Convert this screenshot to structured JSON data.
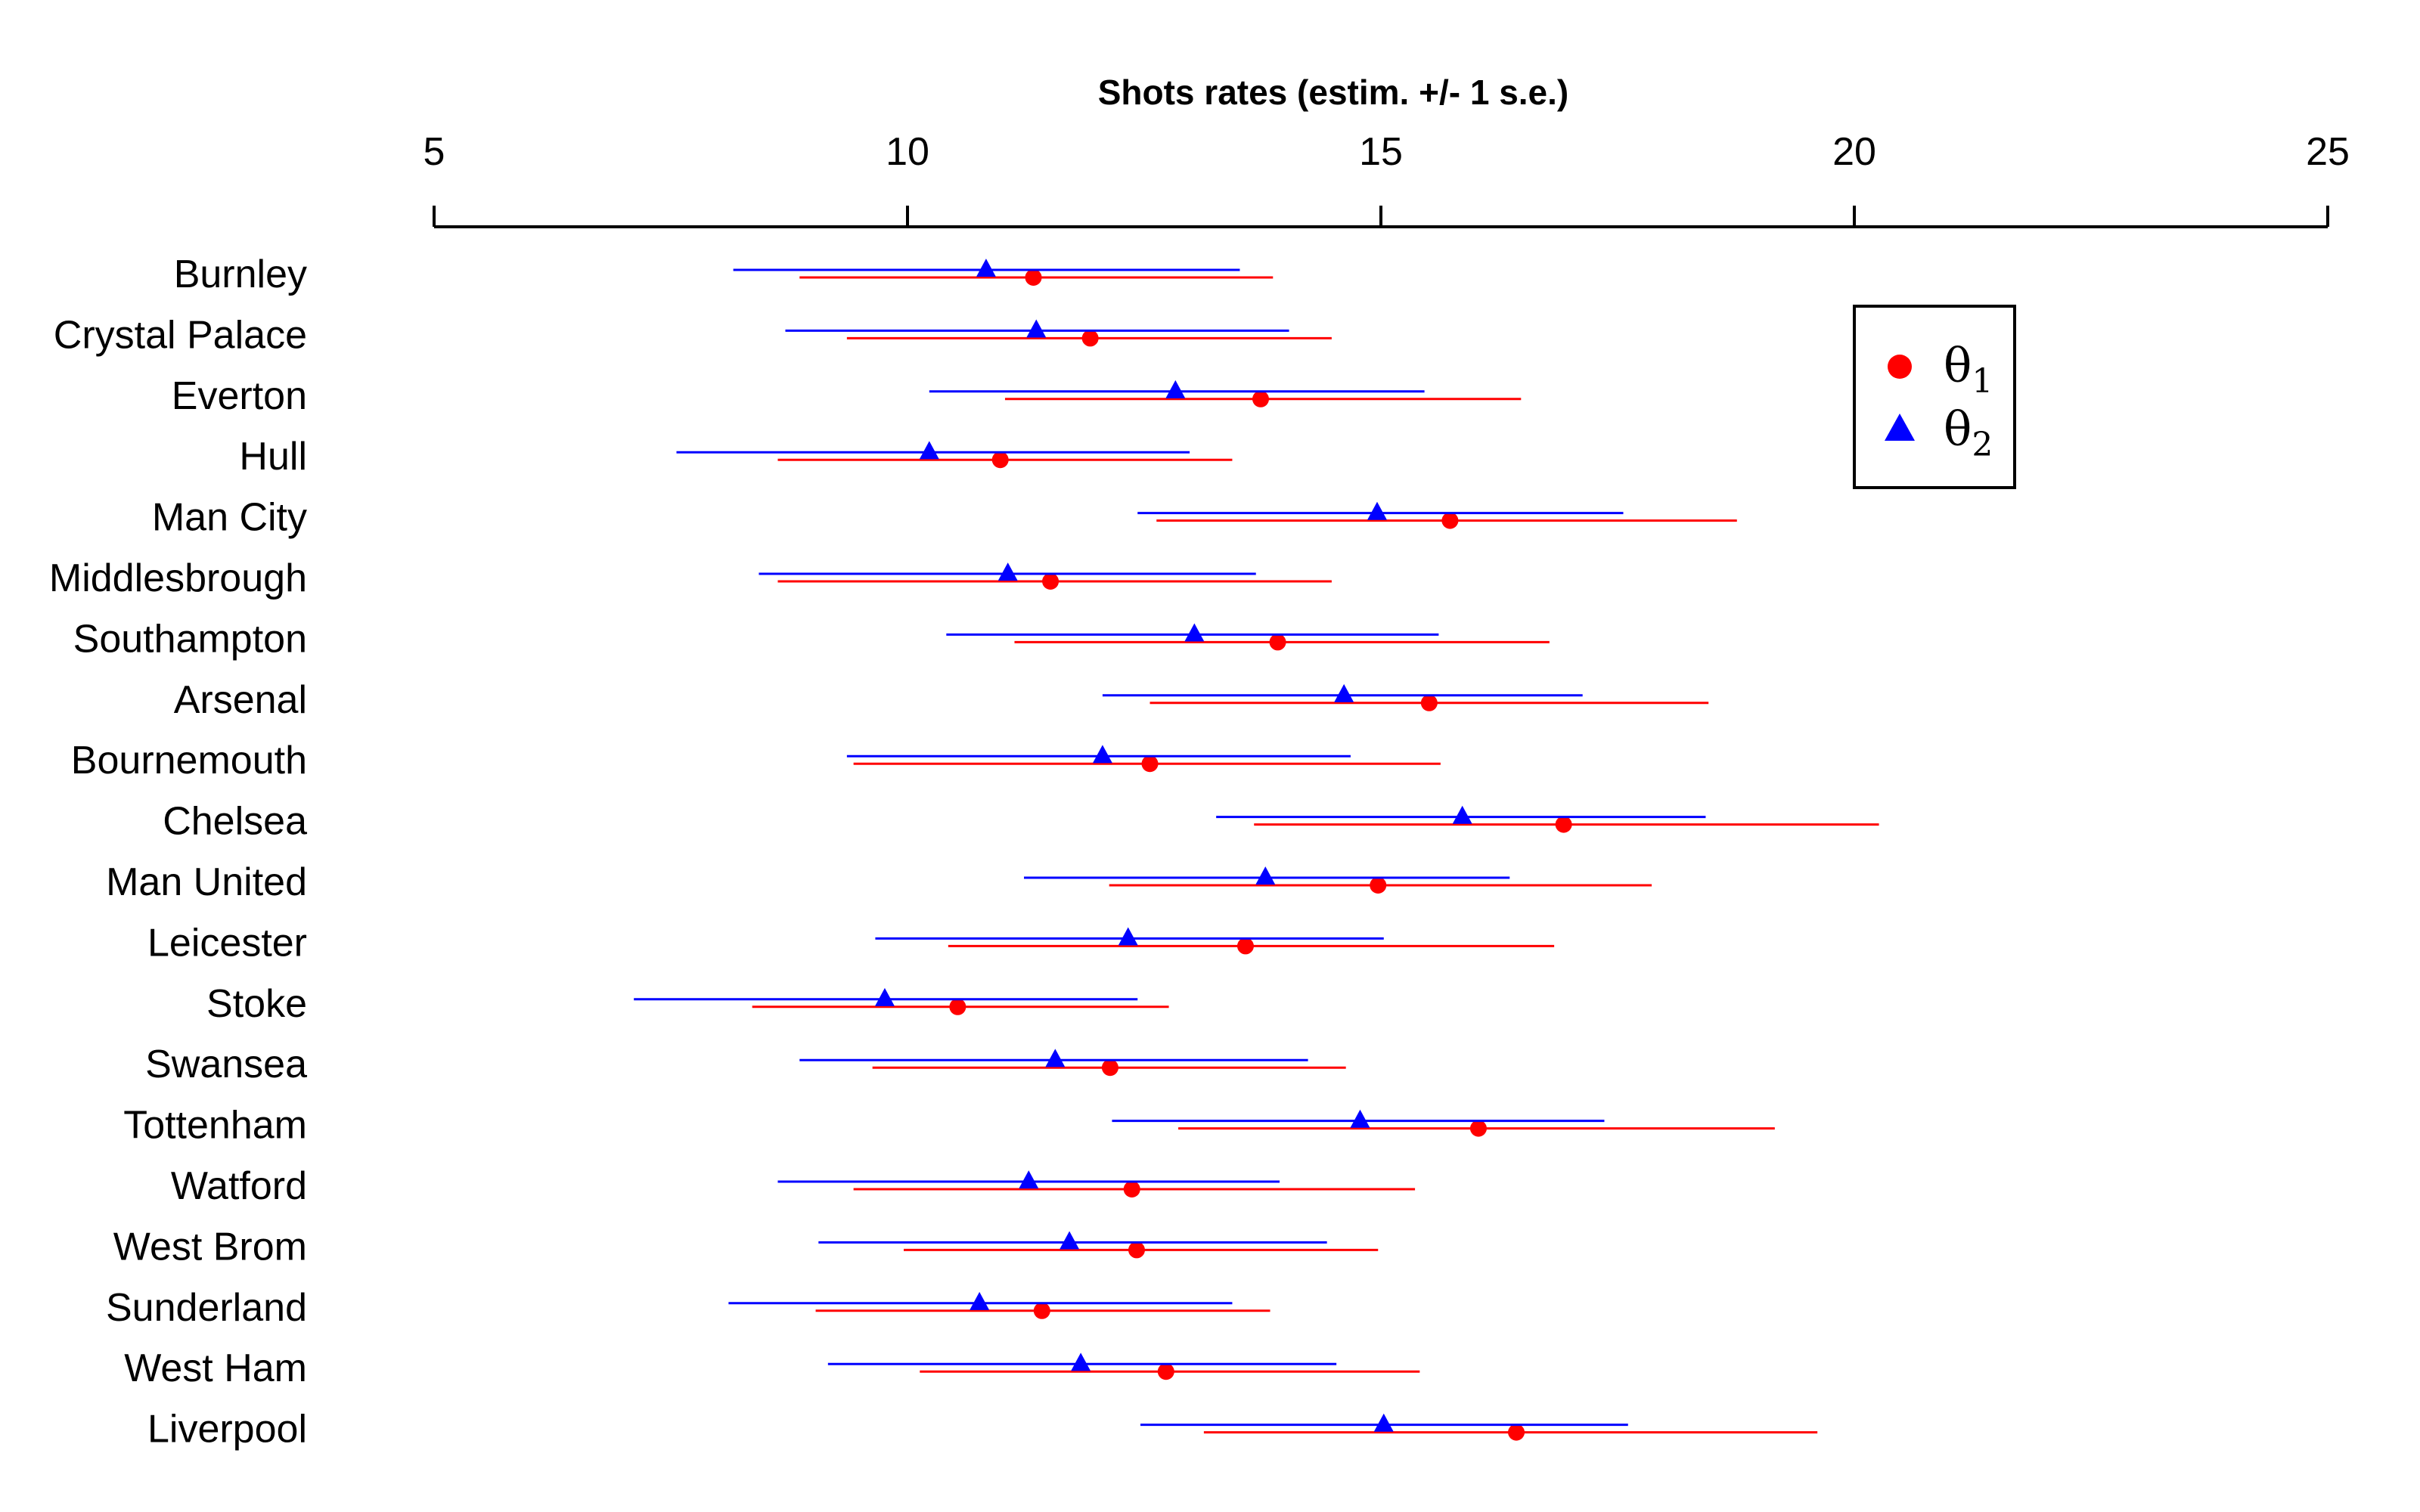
{
  "chart_data": {
    "type": "interval_dot",
    "title": "Shots rates (estim. +/- 1 s.e.)",
    "xlim": [
      5,
      25
    ],
    "ticks": [
      5,
      10,
      15,
      20,
      25
    ],
    "tick_labels": [
      "5",
      "10",
      "15",
      "20",
      "25"
    ],
    "grid": false,
    "legend": {
      "position": "top-right",
      "entries": [
        {
          "symbol": "θ",
          "sub": "1",
          "marker": "circle",
          "color": "#ff0000"
        },
        {
          "symbol": "θ",
          "sub": "2",
          "marker": "triangle",
          "color": "#0000ff"
        }
      ]
    },
    "categories": [
      "Burnley",
      "Crystal Palace",
      "Everton",
      "Hull",
      "Man City",
      "Middlesbrough",
      "Southampton",
      "Arsenal",
      "Bournemouth",
      "Chelsea",
      "Man United",
      "Leicester",
      "Stoke",
      "Swansea",
      "Tottenham",
      "Watford",
      "West Brom",
      "Sunderland",
      "West Ham",
      "Liverpool"
    ],
    "series": [
      {
        "marker": "circle",
        "color": "#ff0000",
        "estimate": [
          11.33,
          11.93,
          13.73,
          10.98,
          15.73,
          11.51,
          13.91,
          15.51,
          12.56,
          16.93,
          14.97,
          13.57,
          10.53,
          12.14,
          16.03,
          12.37,
          12.42,
          11.42,
          12.73,
          16.43
        ],
        "lower": [
          8.86,
          9.36,
          11.03,
          8.63,
          12.63,
          8.63,
          11.13,
          12.56,
          9.43,
          13.66,
          12.13,
          10.43,
          8.36,
          9.63,
          12.86,
          9.43,
          9.96,
          9.03,
          10.13,
          13.13
        ],
        "upper": [
          13.86,
          14.48,
          16.48,
          13.43,
          18.76,
          14.48,
          16.78,
          18.46,
          15.63,
          20.26,
          17.86,
          16.83,
          12.76,
          14.63,
          19.16,
          15.36,
          14.97,
          13.83,
          15.41,
          19.61
        ]
      },
      {
        "marker": "triangle",
        "color": "#0000ff",
        "estimate": [
          10.83,
          11.36,
          12.83,
          10.23,
          14.96,
          11.06,
          13.03,
          14.61,
          12.06,
          15.86,
          13.78,
          12.33,
          9.76,
          11.56,
          14.78,
          11.28,
          11.71,
          10.76,
          11.83,
          15.03
        ],
        "lower": [
          8.16,
          8.71,
          10.23,
          7.56,
          12.43,
          8.43,
          10.41,
          12.06,
          9.36,
          13.26,
          11.23,
          9.66,
          7.11,
          8.86,
          12.16,
          8.63,
          9.06,
          8.11,
          9.16,
          12.46
        ],
        "upper": [
          13.51,
          14.03,
          15.46,
          12.98,
          17.56,
          13.68,
          15.61,
          17.13,
          14.68,
          18.43,
          16.36,
          15.03,
          12.43,
          14.23,
          17.36,
          13.93,
          14.43,
          13.43,
          14.53,
          17.61
        ]
      }
    ]
  }
}
